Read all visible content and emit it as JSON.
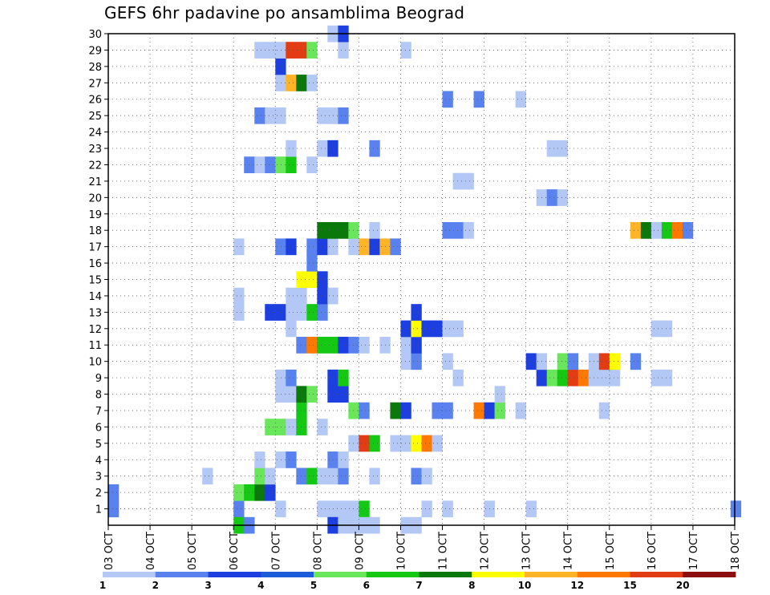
{
  "chart_data": {
    "type": "heatmap",
    "title": "GEFS 6hr padavine po ansamblima Beograd",
    "x_tick_labels": [
      "03 OCT",
      "04 OCT",
      "05 OCT",
      "06 OCT",
      "07 OCT",
      "08 OCT",
      "09 OCT",
      "10 OCT",
      "11 OCT",
      "12 OCT",
      "13 OCT",
      "14 OCT",
      "15 OCT",
      "16 OCT",
      "17 OCT",
      "18 OCT"
    ],
    "y_tick_labels": [
      "1",
      "2",
      "3",
      "4",
      "5",
      "6",
      "7",
      "8",
      "9",
      "10",
      "11",
      "12",
      "13",
      "14",
      "15",
      "16",
      "17",
      "18",
      "19",
      "20",
      "21",
      "22",
      "23",
      "24",
      "25",
      "26",
      "27",
      "28",
      "29",
      "30"
    ],
    "x_unit": "days since 03 OCT, 4 steps of 6h per day",
    "y_range": [
      0,
      30
    ],
    "grid": true,
    "colorbar": {
      "labels": [
        "1",
        "2",
        "3",
        "4",
        "5",
        "6",
        "7",
        "8",
        "10",
        "12",
        "15",
        "20"
      ],
      "colors": [
        "#b4c8f5",
        "#5a82ee",
        "#1e3fe0",
        "#1c5cd8",
        "#6ae65a",
        "#14c814",
        "#0a780a",
        "#ffff00",
        "#ffb428",
        "#ff7800",
        "#e13c14",
        "#8c0f0f"
      ]
    },
    "cell_levels_note": "level index 0..11 corresponds to colorbar colors",
    "cells": [
      [
        0,
        1,
        1
      ],
      [
        3,
        1,
        1
      ],
      [
        4,
        1,
        0
      ],
      [
        5,
        1,
        0
      ],
      [
        5.25,
        1,
        0
      ],
      [
        5.5,
        1,
        0
      ],
      [
        5.75,
        1,
        0
      ],
      [
        6,
        1,
        5
      ],
      [
        7.5,
        1,
        0
      ],
      [
        8,
        1,
        0
      ],
      [
        9,
        1,
        0
      ],
      [
        10,
        1,
        0
      ],
      [
        0,
        2,
        1
      ],
      [
        3,
        2,
        4
      ],
      [
        3.25,
        2,
        5
      ],
      [
        3.5,
        2,
        6
      ],
      [
        3.75,
        2,
        2
      ],
      [
        2.25,
        3,
        0
      ],
      [
        3.5,
        3,
        4
      ],
      [
        3.75,
        3,
        0
      ],
      [
        4.5,
        3,
        1
      ],
      [
        4.75,
        3,
        5
      ],
      [
        5,
        3,
        0
      ],
      [
        5.25,
        3,
        0
      ],
      [
        5.5,
        3,
        1
      ],
      [
        6.25,
        3,
        0
      ],
      [
        7.25,
        3,
        1
      ],
      [
        7.5,
        3,
        0
      ],
      [
        3.5,
        4,
        0
      ],
      [
        4,
        4,
        0
      ],
      [
        4.25,
        4,
        1
      ],
      [
        5.25,
        4,
        1
      ],
      [
        5.5,
        4,
        0
      ],
      [
        5.75,
        5,
        0
      ],
      [
        6,
        5,
        10
      ],
      [
        6.25,
        5,
        5
      ],
      [
        6.75,
        5,
        0
      ],
      [
        7,
        5,
        0
      ],
      [
        7.25,
        5,
        7
      ],
      [
        7.5,
        5,
        9
      ],
      [
        7.75,
        5,
        0
      ],
      [
        3.75,
        6,
        4
      ],
      [
        4,
        6,
        4
      ],
      [
        4.25,
        6,
        0
      ],
      [
        4.5,
        6,
        5
      ],
      [
        5,
        6,
        0
      ],
      [
        4.5,
        7,
        5
      ],
      [
        5.75,
        7,
        4
      ],
      [
        6,
        7,
        1
      ],
      [
        6.75,
        7,
        6
      ],
      [
        7,
        7,
        2
      ],
      [
        7.75,
        7,
        1
      ],
      [
        8,
        7,
        1
      ],
      [
        8.75,
        7,
        9
      ],
      [
        9,
        7,
        2
      ],
      [
        9.25,
        7,
        4
      ],
      [
        9.75,
        7,
        0
      ],
      [
        11.75,
        7,
        0
      ],
      [
        4,
        8,
        0
      ],
      [
        4.25,
        8,
        0
      ],
      [
        4.5,
        8,
        6
      ],
      [
        4.75,
        8,
        4
      ],
      [
        5.25,
        8,
        2
      ],
      [
        5.5,
        8,
        2
      ],
      [
        9.25,
        8,
        0
      ],
      [
        4,
        9,
        0
      ],
      [
        4.25,
        9,
        1
      ],
      [
        5.25,
        9,
        2
      ],
      [
        5.5,
        9,
        5
      ],
      [
        8.25,
        9,
        0
      ],
      [
        10.25,
        9,
        2
      ],
      [
        10.5,
        9,
        4
      ],
      [
        10.75,
        9,
        5
      ],
      [
        11,
        9,
        10
      ],
      [
        11.25,
        9,
        9
      ],
      [
        11.5,
        9,
        0
      ],
      [
        11.75,
        9,
        0
      ],
      [
        12,
        9,
        0
      ],
      [
        13,
        9,
        0
      ],
      [
        13.25,
        9,
        0
      ],
      [
        7,
        10,
        0
      ],
      [
        7.25,
        10,
        1
      ],
      [
        8,
        10,
        0
      ],
      [
        10,
        10,
        2
      ],
      [
        10.25,
        10,
        0
      ],
      [
        10.75,
        10,
        4
      ],
      [
        11,
        10,
        1
      ],
      [
        11.5,
        10,
        0
      ],
      [
        11.75,
        10,
        10
      ],
      [
        12,
        10,
        7
      ],
      [
        12.5,
        10,
        1
      ],
      [
        4.5,
        11,
        1
      ],
      [
        4.75,
        11,
        9
      ],
      [
        5,
        11,
        5
      ],
      [
        5.25,
        11,
        5
      ],
      [
        5.5,
        11,
        2
      ],
      [
        5.75,
        11,
        1
      ],
      [
        6,
        11,
        0
      ],
      [
        6.5,
        11,
        0
      ],
      [
        7,
        11,
        0
      ],
      [
        7.25,
        11,
        2
      ],
      [
        4.25,
        12,
        0
      ],
      [
        7,
        12,
        2
      ],
      [
        7.25,
        12,
        7
      ],
      [
        7.5,
        12,
        2
      ],
      [
        7.75,
        12,
        2
      ],
      [
        8,
        12,
        0
      ],
      [
        8.25,
        12,
        0
      ],
      [
        13,
        12,
        0
      ],
      [
        13.25,
        12,
        0
      ],
      [
        3,
        13,
        0
      ],
      [
        3.75,
        13,
        2
      ],
      [
        4,
        13,
        2
      ],
      [
        4.25,
        13,
        0
      ],
      [
        4.5,
        13,
        0
      ],
      [
        4.75,
        13,
        5
      ],
      [
        5,
        13,
        1
      ],
      [
        7.25,
        13,
        2
      ],
      [
        3,
        14,
        0
      ],
      [
        4.25,
        14,
        0
      ],
      [
        4.5,
        14,
        0
      ],
      [
        5,
        14,
        2
      ],
      [
        5.25,
        14,
        0
      ],
      [
        4.5,
        15,
        7
      ],
      [
        4.75,
        15,
        7
      ],
      [
        5,
        15,
        2
      ],
      [
        4.75,
        16,
        1
      ],
      [
        3,
        17,
        0
      ],
      [
        4,
        17,
        1
      ],
      [
        4.25,
        17,
        2
      ],
      [
        4.75,
        17,
        1
      ],
      [
        5,
        17,
        2
      ],
      [
        5.25,
        17,
        0
      ],
      [
        5.75,
        17,
        0
      ],
      [
        6,
        17,
        8
      ],
      [
        6.25,
        17,
        2
      ],
      [
        6.5,
        17,
        8
      ],
      [
        6.75,
        17,
        1
      ],
      [
        5,
        18,
        6
      ],
      [
        5.25,
        18,
        6
      ],
      [
        5.5,
        18,
        6
      ],
      [
        5.75,
        18,
        4
      ],
      [
        6.25,
        18,
        0
      ],
      [
        8,
        18,
        1
      ],
      [
        8.25,
        18,
        1
      ],
      [
        8.5,
        18,
        0
      ],
      [
        12.5,
        18,
        8
      ],
      [
        12.75,
        18,
        6
      ],
      [
        13,
        18,
        0
      ],
      [
        13.25,
        18,
        5
      ],
      [
        13.5,
        18,
        9
      ],
      [
        13.75,
        18,
        1
      ],
      [
        10.25,
        20,
        0
      ],
      [
        10.5,
        20,
        1
      ],
      [
        10.75,
        20,
        0
      ],
      [
        8.25,
        21,
        0
      ],
      [
        8.5,
        21,
        0
      ],
      [
        3.25,
        22,
        1
      ],
      [
        3.5,
        22,
        0
      ],
      [
        3.75,
        22,
        1
      ],
      [
        4,
        22,
        4
      ],
      [
        4.25,
        22,
        5
      ],
      [
        4.75,
        22,
        0
      ],
      [
        4.25,
        23,
        0
      ],
      [
        5,
        23,
        0
      ],
      [
        5.25,
        23,
        2
      ],
      [
        6.25,
        23,
        1
      ],
      [
        10.5,
        23,
        0
      ],
      [
        10.75,
        23,
        0
      ],
      [
        3.5,
        25,
        1
      ],
      [
        3.75,
        25,
        0
      ],
      [
        4,
        25,
        0
      ],
      [
        5,
        25,
        0
      ],
      [
        5.25,
        25,
        0
      ],
      [
        5.5,
        25,
        1
      ],
      [
        8,
        26,
        1
      ],
      [
        8.75,
        26,
        1
      ],
      [
        9.75,
        26,
        0
      ],
      [
        4,
        27,
        0
      ],
      [
        4.25,
        27,
        8
      ],
      [
        4.5,
        27,
        6
      ],
      [
        4.75,
        27,
        0
      ],
      [
        4,
        28,
        2
      ],
      [
        3.5,
        29,
        0
      ],
      [
        3.75,
        29,
        0
      ],
      [
        4,
        29,
        0
      ],
      [
        4.25,
        29,
        10
      ],
      [
        4.5,
        29,
        10
      ],
      [
        4.75,
        29,
        4
      ],
      [
        5.5,
        29,
        0
      ],
      [
        7,
        29,
        0
      ],
      [
        5.25,
        30,
        0
      ],
      [
        5.5,
        30,
        2
      ],
      [
        5.25,
        0,
        2
      ],
      [
        3,
        0,
        5
      ],
      [
        3.25,
        0,
        1
      ],
      [
        5.5,
        0,
        0
      ],
      [
        5.75,
        0,
        0
      ],
      [
        6,
        0,
        0
      ],
      [
        6.25,
        0,
        0
      ],
      [
        7,
        0,
        0
      ],
      [
        7.25,
        0,
        0
      ],
      [
        14.9,
        1,
        1
      ]
    ]
  }
}
